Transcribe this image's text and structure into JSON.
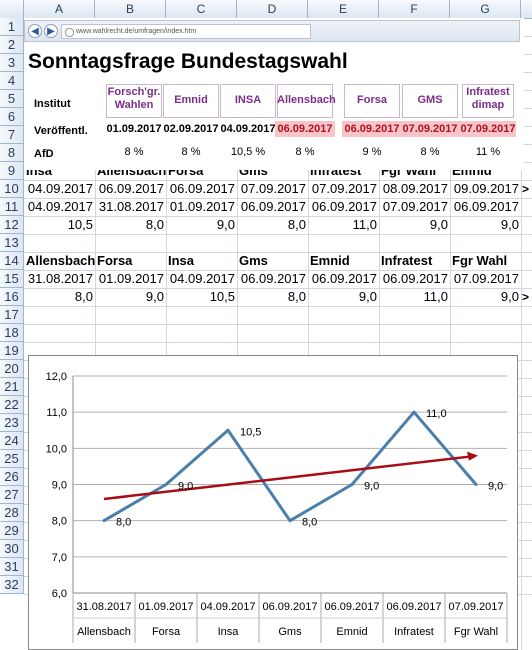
{
  "columns": [
    "A",
    "B",
    "C",
    "D",
    "E",
    "F",
    "G"
  ],
  "rows": [
    "1",
    "2",
    "3",
    "4",
    "5",
    "6",
    "7",
    "8",
    "9",
    "10",
    "11",
    "12",
    "13",
    "14",
    "15",
    "16",
    "17",
    "18",
    "19",
    "20",
    "21",
    "22",
    "23",
    "24",
    "25",
    "26",
    "27",
    "28",
    "29",
    "30",
    "31",
    "32"
  ],
  "browser": {
    "url": "www.wahlrecht.de/umfragen/index.htm",
    "back_icon": "arrow-left-icon",
    "forward_icon": "arrow-right-icon"
  },
  "title": "Sonntagsfrage Bundestagswahl",
  "embedded": {
    "label_institut": "Institut",
    "label_veroeff": "Veröffentl.",
    "label_afd": "AfD",
    "institutes": [
      {
        "name": "Forsch'gr. Wahlen",
        "date": "01.09.2017",
        "value": "8 %",
        "highlight": false
      },
      {
        "name": "Emnid",
        "date": "02.09.2017",
        "value": "8 %",
        "highlight": false
      },
      {
        "name": "INSA",
        "date": "04.09.2017",
        "value": "10,5 %",
        "highlight": false
      },
      {
        "name": "Allensbach",
        "date": "06.09.2017",
        "value": "8 %",
        "highlight": true
      },
      {
        "name": "Forsa",
        "date": "06.09.2017",
        "value": "9 %",
        "highlight": true
      },
      {
        "name": "GMS",
        "date": "07.09.2017",
        "value": "8 %",
        "highlight": true
      },
      {
        "name": "Infratest dimap",
        "date": "07.09.2017",
        "value": "11 %",
        "highlight": true
      }
    ],
    "highlight_color": "#f7c4c8"
  },
  "table1": {
    "headers": [
      "Insa",
      "Allensbach",
      "Forsa",
      "Gms",
      "Infratest",
      "Fgr Wahl",
      "Emnid"
    ],
    "row10": [
      "04.09.2017",
      "06.09.2017",
      "06.09.2017",
      "07.09.2017",
      "07.09.2017",
      "08.09.2017",
      "09.09.2017"
    ],
    "row11": [
      "04.09.2017",
      "31.08.2017",
      "01.09.2017",
      "06.09.2017",
      "06.09.2017",
      "07.09.2017",
      "06.09.2017"
    ],
    "row12": [
      "10,5",
      "8,0",
      "9,0",
      "8,0",
      "11,0",
      "9,0",
      "9,0"
    ],
    "overflow_mark": ">"
  },
  "table2": {
    "headers": [
      "Allensbach",
      "Forsa",
      "Insa",
      "Gms",
      "Emnid",
      "Infratest",
      "Fgr Wahl"
    ],
    "row15": [
      "31.08.2017",
      "01.09.2017",
      "04.09.2017",
      "06.09.2017",
      "06.09.2017",
      "06.09.2017",
      "07.09.2017"
    ],
    "row16": [
      "8,0",
      "9,0",
      "10,5",
      "8,0",
      "9,0",
      "11,0",
      "9,0"
    ],
    "overflow_mark": ">"
  },
  "chart_data": {
    "type": "line",
    "categories": [
      "31.08.2017 Allensbach",
      "01.09.2017 Forsa",
      "04.09.2017 Insa",
      "06.09.2017 Gms",
      "06.09.2017 Emnid",
      "06.09.2017 Infratest",
      "07.09.2017 Fgr Wahl"
    ],
    "x_dates": [
      "31.08.2017",
      "01.09.2017",
      "04.09.2017",
      "06.09.2017",
      "06.09.2017",
      "06.09.2017",
      "07.09.2017"
    ],
    "x_names": [
      "Allensbach",
      "Forsa",
      "Insa",
      "Gms",
      "Emnid",
      "Infratest",
      "Fgr Wahl"
    ],
    "values": [
      8.0,
      9.0,
      10.5,
      8.0,
      9.0,
      11.0,
      9.0
    ],
    "data_labels": [
      "8,0",
      "9,0",
      "10,5",
      "8,0",
      "9,0",
      "11,0",
      "9,0"
    ],
    "yticks": [
      "6,0",
      "7,0",
      "8,0",
      "9,0",
      "10,0",
      "11,0",
      "12,0"
    ],
    "ylim": [
      6,
      12
    ],
    "trendline": {
      "start": 8.6,
      "end": 9.8,
      "color": "#a80c14"
    },
    "line_color": "#4a7eab",
    "grid": true,
    "legend": "none",
    "title": "",
    "xlabel": "",
    "ylabel": ""
  }
}
